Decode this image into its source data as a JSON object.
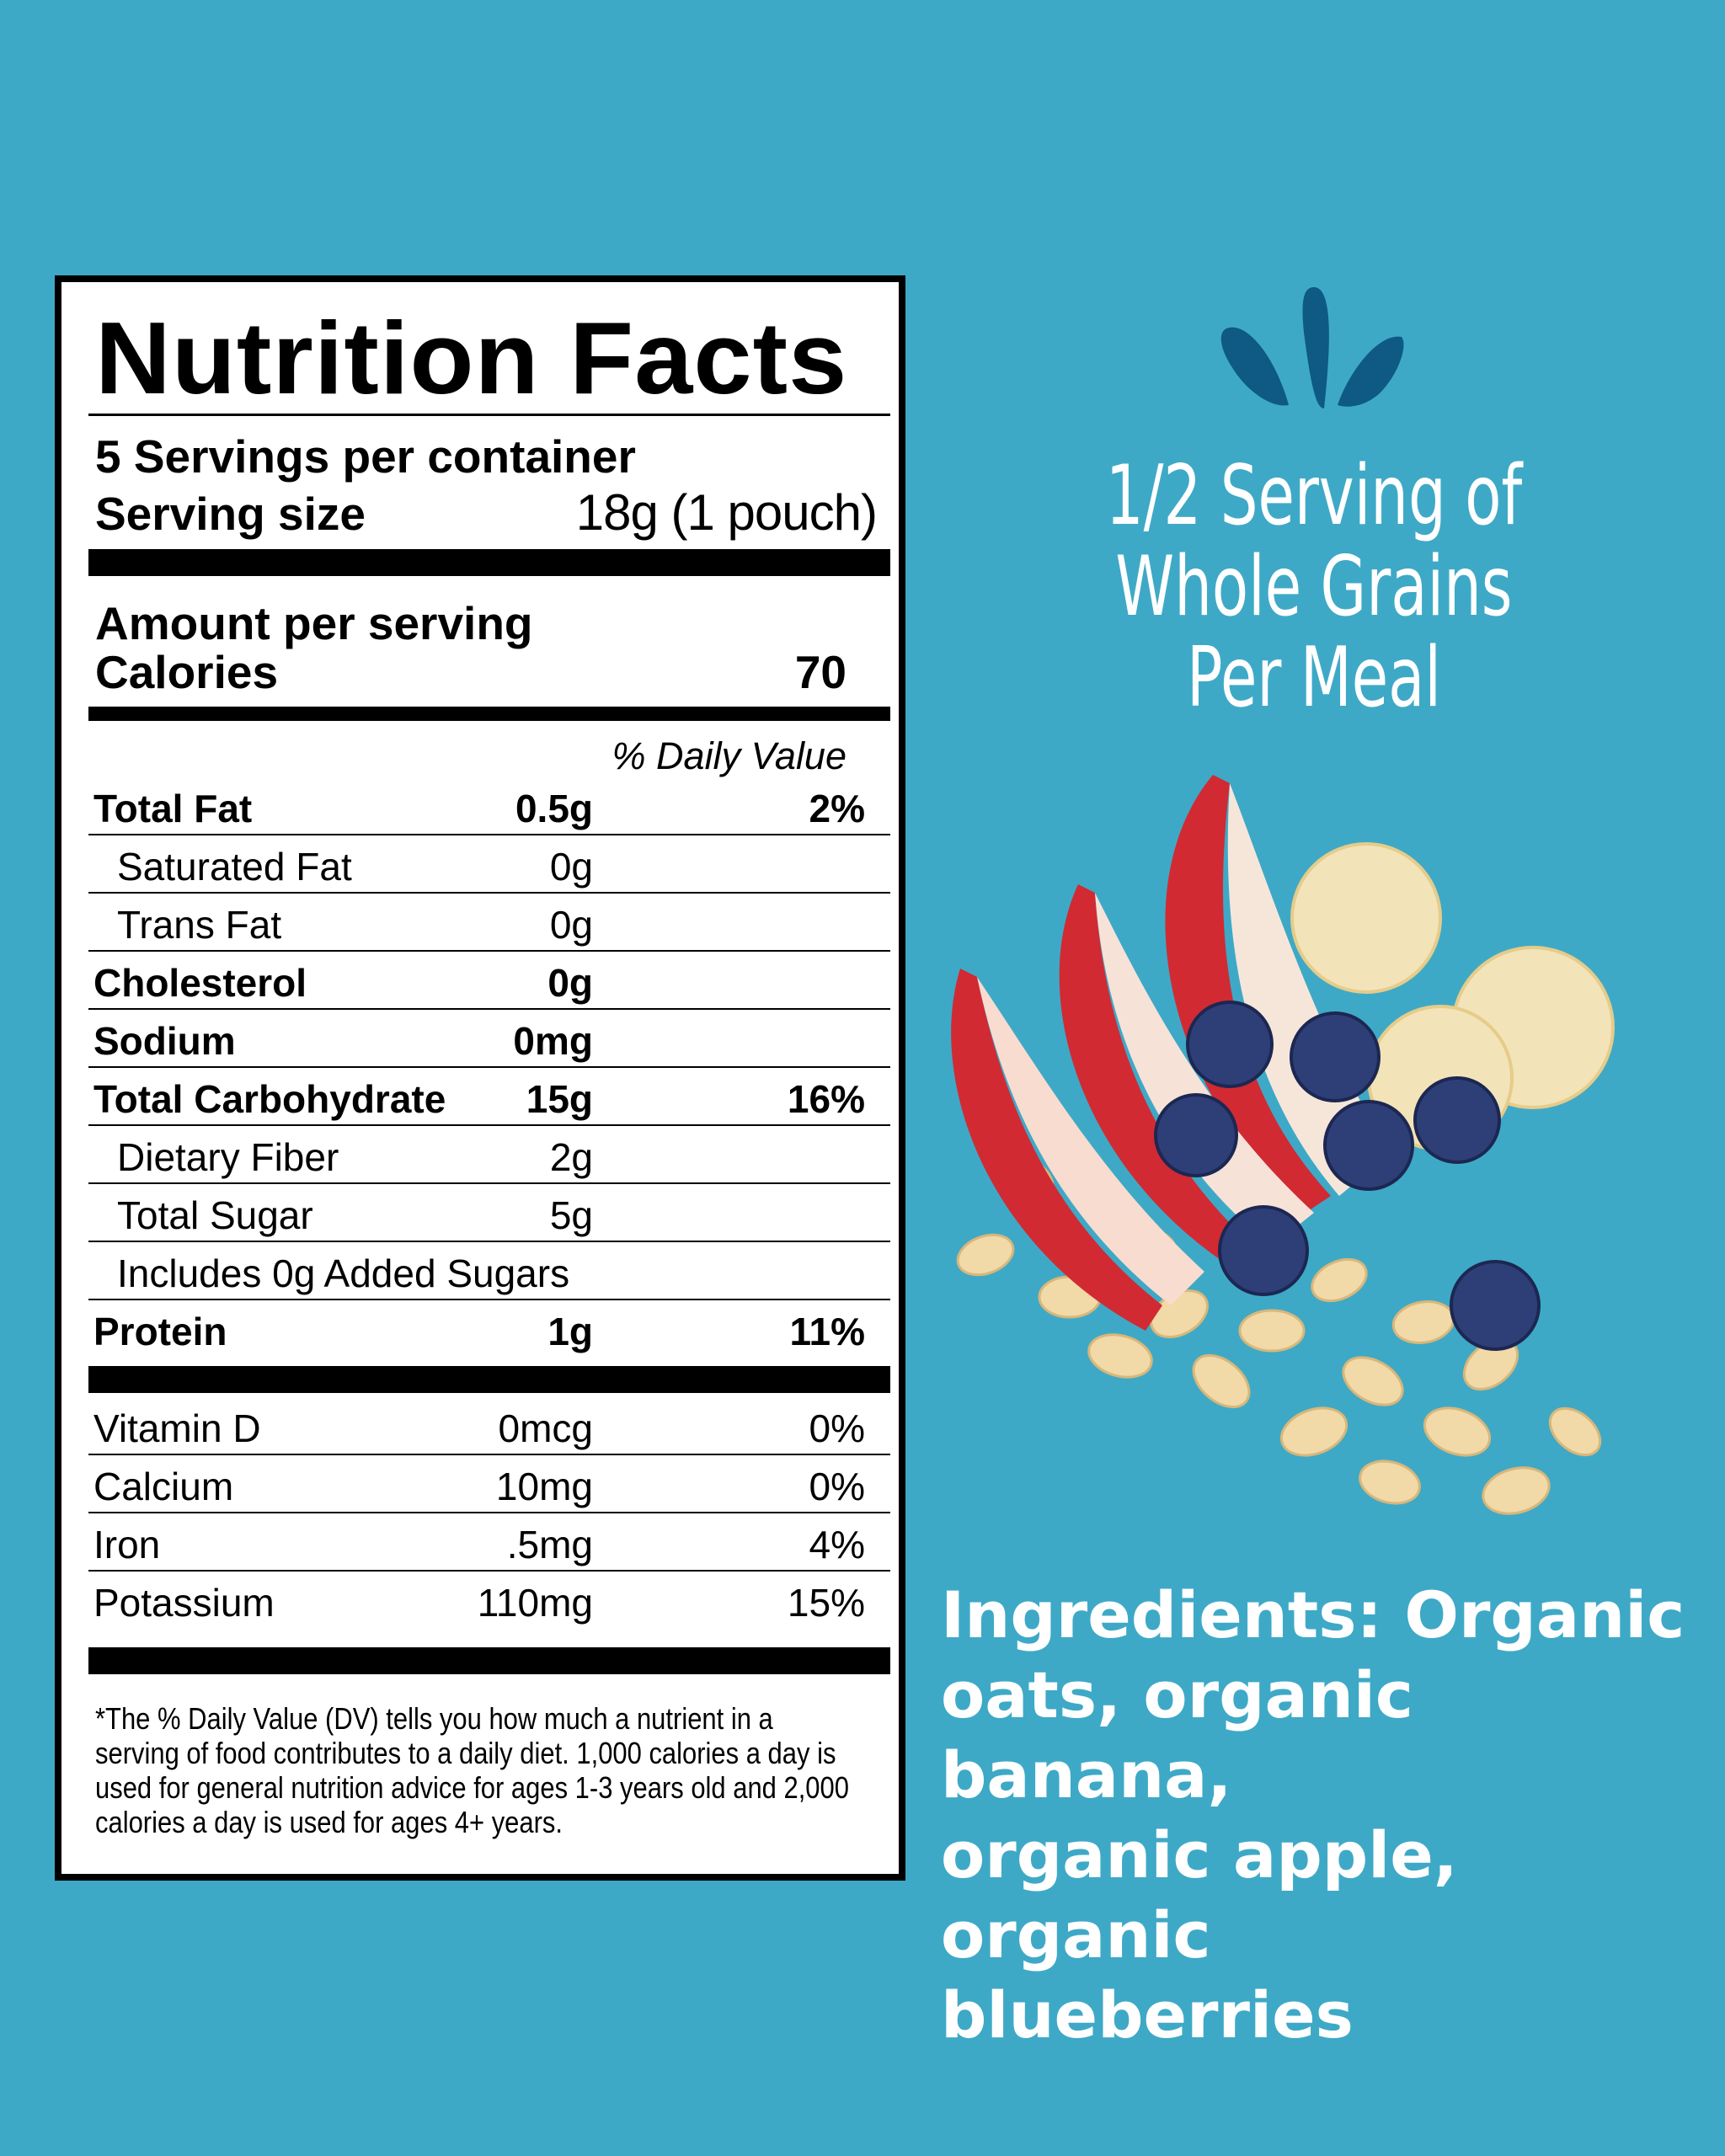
{
  "label": {
    "title": "Nutrition Facts",
    "servings": "5 Servings per container",
    "serving_size_label": "Serving size",
    "serving_size_value": "18g (1 pouch)",
    "amount_per_serving": "Amount per serving",
    "calories_label": "Calories",
    "calories_value": "70",
    "dv_header": "% Daily Value",
    "rows": [
      {
        "name": "Total Fat",
        "amount": "0.5g",
        "dv": "2%"
      },
      {
        "name": "Saturated Fat",
        "amount": "0g",
        "dv": ""
      },
      {
        "name": "Trans Fat",
        "amount": "0g",
        "dv": ""
      },
      {
        "name": "Cholesterol",
        "amount": "0g",
        "dv": ""
      },
      {
        "name": "Sodium",
        "amount": "0mg",
        "dv": ""
      },
      {
        "name": "Total Carbohydrate",
        "amount": "15g",
        "dv": "16%"
      },
      {
        "name": "Dietary Fiber",
        "amount": "2g",
        "dv": ""
      },
      {
        "name": "Total Sugar",
        "amount": "5g",
        "dv": ""
      },
      {
        "name": "Includes 0g Added Sugars",
        "amount": "",
        "dv": ""
      },
      {
        "name": "Protein",
        "amount": "1g",
        "dv": "11%"
      }
    ],
    "vitamins": [
      {
        "name": "Vitamin D",
        "amount": "0mcg",
        "dv": "0%"
      },
      {
        "name": "Calcium",
        "amount": "10mg",
        "dv": "0%"
      },
      {
        "name": "Iron",
        "amount": ".5mg",
        "dv": "4%"
      },
      {
        "name": "Potassium",
        "amount": "110mg",
        "dv": "15%"
      }
    ],
    "footnote": [
      "*The % Daily Value (DV) tells you how much a nutrient in a",
      "serving of food contributes to a daily diet. 1,000 calories a day is",
      "used for general nutrition advice for ages 1-3 years old and 2,000",
      "calories a day is used for ages 4+ years."
    ]
  },
  "headline": [
    "1/2 Serving of",
    "Whole Grains",
    "Per Meal"
  ],
  "ingredients": [
    "Ingredients: Organic",
    "oats, organic banana,",
    "organic apple, organic",
    "blueberries"
  ],
  "colors": {
    "background": "#3ea9c6",
    "logo": "#0e5a85"
  },
  "icons": {
    "logo": "leaf-sprout-icon",
    "illustration": "fruit-oats-illustration"
  }
}
